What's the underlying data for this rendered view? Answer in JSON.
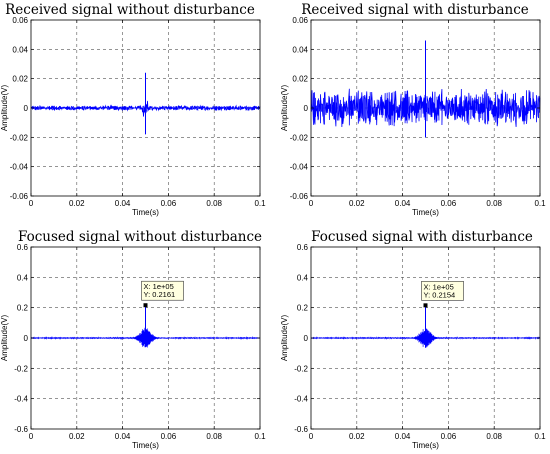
{
  "chart_data": [
    {
      "type": "line",
      "title": "Received signal without disturbance",
      "xlabel": "Time(s)",
      "ylabel": "Amplitude(V)",
      "xlim": [
        0,
        0.1
      ],
      "ylim": [
        -0.06,
        0.06
      ],
      "xticks": [
        "0",
        "0.02",
        "0.04",
        "0.06",
        "0.08",
        "0.1"
      ],
      "yticks": [
        "-0.06",
        "-0.04",
        "-0.02",
        "0",
        "0.02",
        "0.04",
        "0.06"
      ],
      "grid": true,
      "series": [
        {
          "color": "#0000ff",
          "noise_amplitude": 0.0015,
          "peak_time": 0.05,
          "peak_max": 0.024,
          "peak_min": -0.018
        }
      ]
    },
    {
      "type": "line",
      "title": "Received signal with disturbance",
      "xlabel": "Time(s)",
      "ylabel": "Amplitude(V)",
      "xlim": [
        0,
        0.1
      ],
      "ylim": [
        -0.06,
        0.06
      ],
      "xticks": [
        "0",
        "0.02",
        "0.04",
        "0.06",
        "0.08",
        "0.1"
      ],
      "yticks": [
        "-0.06",
        "-0.04",
        "-0.02",
        "0",
        "0.02",
        "0.04",
        "0.06"
      ],
      "grid": true,
      "series": [
        {
          "color": "#0000ff",
          "noise_amplitude": 0.012,
          "peak_time": 0.05,
          "peak_max": 0.046,
          "peak_min": -0.02
        }
      ]
    },
    {
      "type": "line",
      "title": "Focused signal without disturbance",
      "xlabel": "Time(s)",
      "ylabel": "Amplitude(V)",
      "xlim": [
        0,
        0.1
      ],
      "ylim": [
        -0.6,
        0.6
      ],
      "xticks": [
        "0",
        "0.02",
        "0.04",
        "0.06",
        "0.08",
        "0.1"
      ],
      "yticks": [
        "-0.6",
        "-0.4",
        "-0.2",
        "0",
        "0.2",
        "0.4",
        "0.6"
      ],
      "grid": true,
      "series": [
        {
          "color": "#0000ff",
          "noise_amplitude": 0.003,
          "peak_time": 0.05,
          "peak_max": 0.2161,
          "peak_min": -0.06
        }
      ],
      "datatip": {
        "x_label": "X: 1e+05",
        "y_label": "Y: 0.2161",
        "x": 0.05,
        "y": 0.2161
      }
    },
    {
      "type": "line",
      "title": "Focused signal with disturbance",
      "xlabel": "Time(s)",
      "ylabel": "Amplitude(V)",
      "xlim": [
        0,
        0.1
      ],
      "ylim": [
        -0.6,
        0.6
      ],
      "xticks": [
        "0",
        "0.02",
        "0.04",
        "0.06",
        "0.08",
        "0.1"
      ],
      "yticks": [
        "-0.6",
        "-0.4",
        "-0.2",
        "0",
        "0.2",
        "0.4",
        "0.6"
      ],
      "grid": true,
      "series": [
        {
          "color": "#0000ff",
          "noise_amplitude": 0.003,
          "peak_time": 0.05,
          "peak_max": 0.2154,
          "peak_min": -0.06
        }
      ],
      "datatip": {
        "x_label": "X: 1e+05",
        "y_label": "Y: 0.2154",
        "x": 0.05,
        "y": 0.2154
      }
    }
  ]
}
